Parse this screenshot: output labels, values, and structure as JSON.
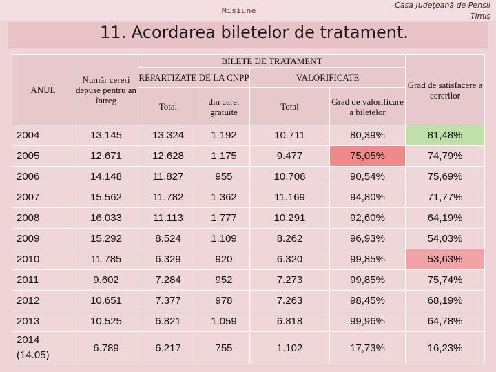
{
  "header": {
    "mission": "Misiune",
    "org_line1": "Casa Județeană de Pensii",
    "org_line2": "Timiș",
    "title": "11. Acordarea biletelor de tratament."
  },
  "table": {
    "headers": {
      "anul": "ANUL",
      "cereri": "Număr cereri depuse pentru an întreg",
      "bilete": "BILETE DE TRATAMENT",
      "repartizate": "REPARTIZATE DE LA CNPP",
      "valorificate": "VALORIFICATE",
      "total_rep": "Total",
      "gratuite": "din care: gratuite",
      "total_val": "Total",
      "grad_val": "Grad de valorificare a biletelor",
      "grad_sat": "Grad de satisfacere a cererilor"
    },
    "rows": [
      {
        "an": "2004",
        "cereri": "13.145",
        "total_rep": "13.324",
        "gratuite": "1.192",
        "total_val": "10.711",
        "grad_val": "80,39%",
        "grad_sat": "81,48%"
      },
      {
        "an": "2005",
        "cereri": "12.671",
        "total_rep": "12.628",
        "gratuite": "1.175",
        "total_val": "9.477",
        "grad_val": "75,05%",
        "grad_sat": "74,79%"
      },
      {
        "an": "2006",
        "cereri": "14.148",
        "total_rep": "11.827",
        "gratuite": "955",
        "total_val": "10.708",
        "grad_val": "90,54%",
        "grad_sat": "75,69%"
      },
      {
        "an": "2007",
        "cereri": "15.562",
        "total_rep": "11.782",
        "gratuite": "1.362",
        "total_val": "11.169",
        "grad_val": "94,80%",
        "grad_sat": "71,77%"
      },
      {
        "an": "2008",
        "cereri": "16.033",
        "total_rep": "11.113",
        "gratuite": "1.777",
        "total_val": "10.291",
        "grad_val": "92,60%",
        "grad_sat": "64,19%"
      },
      {
        "an": "2009",
        "cereri": "15.292",
        "total_rep": "8.524",
        "gratuite": "1.109",
        "total_val": "8.262",
        "grad_val": "96,93%",
        "grad_sat": "54,03%"
      },
      {
        "an": "2010",
        "cereri": "11.785",
        "total_rep": "6.329",
        "gratuite": "920",
        "total_val": "6.320",
        "grad_val": "99,85%",
        "grad_sat": "53,63%"
      },
      {
        "an": "2011",
        "cereri": "9.602",
        "total_rep": "7.284",
        "gratuite": "952",
        "total_val": "7.273",
        "grad_val": "99,85%",
        "grad_sat": "75,74%"
      },
      {
        "an": "2012",
        "cereri": "10.651",
        "total_rep": "7.377",
        "gratuite": "978",
        "total_val": "7.263",
        "grad_val": "98,45%",
        "grad_sat": "68,19%"
      },
      {
        "an": "2013",
        "cereri": "10.525",
        "total_rep": "6.821",
        "gratuite": "1.059",
        "total_val": "6.818",
        "grad_val": "99,96%",
        "grad_sat": "64,78%"
      }
    ],
    "last_row": {
      "an_line1": "2014",
      "an_line2": "(14.05)",
      "cereri": "6.789",
      "total_rep": "6.217",
      "gratuite": "755",
      "total_val": "1.102",
      "grad_val": "17,73%",
      "grad_sat": "16,23%"
    }
  },
  "colors": {
    "highlight_red": "#f08a8a",
    "highlight_green": "#bfe0a8",
    "highlight_pink": "#f2a3a6"
  }
}
